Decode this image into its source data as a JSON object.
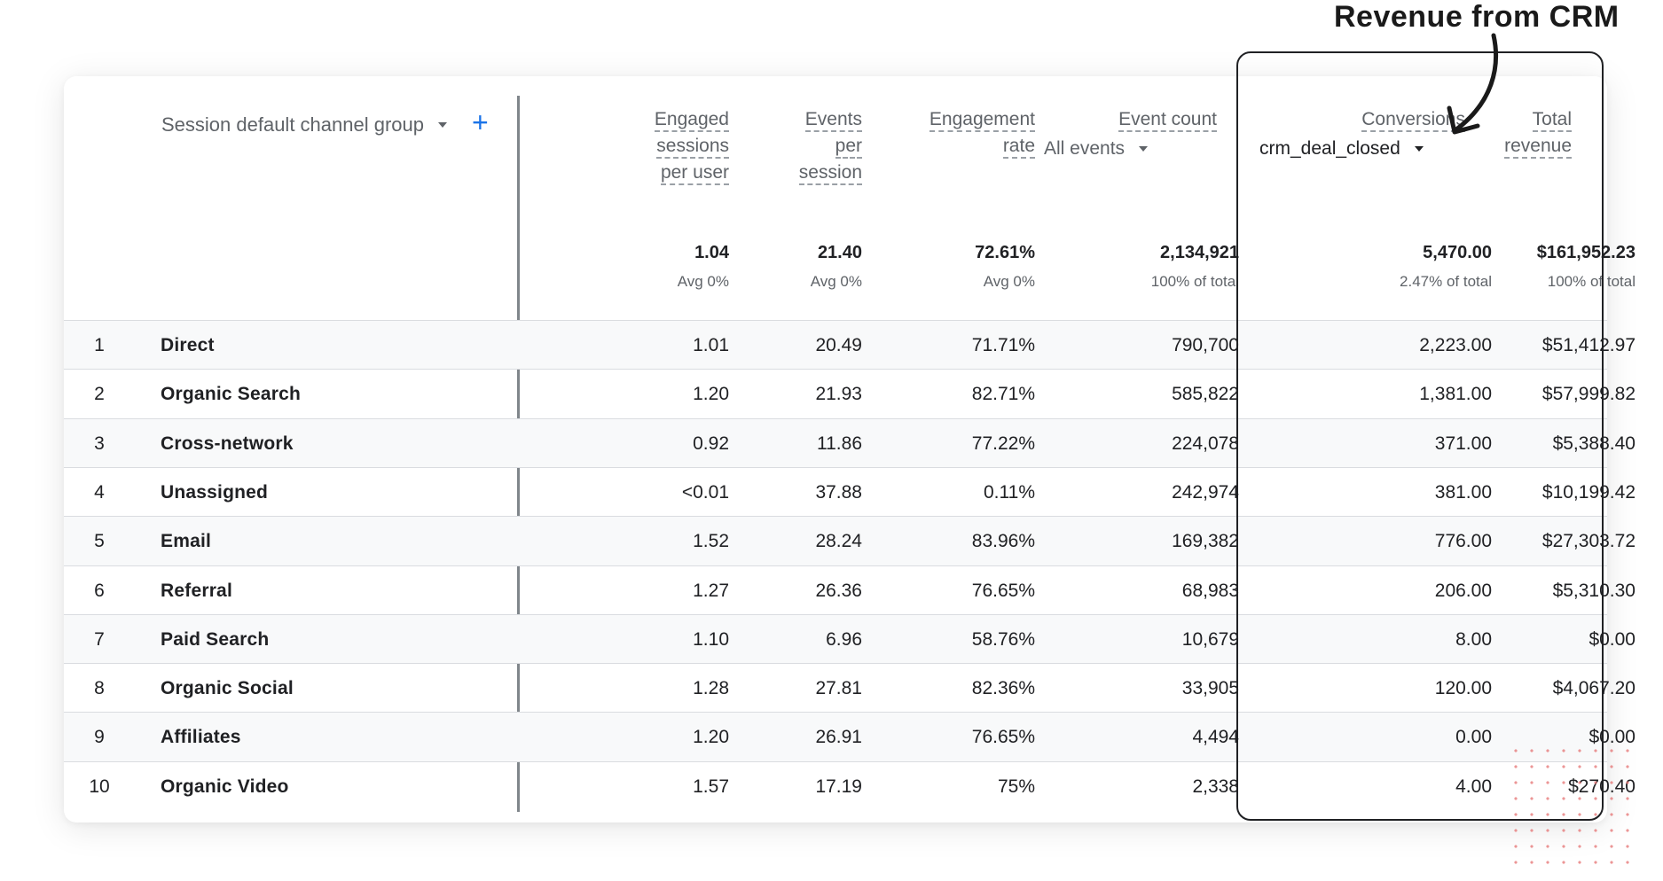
{
  "annotation": {
    "text": "Revenue from CRM"
  },
  "dimension": {
    "label": "Session default channel group",
    "add_symbol": "+"
  },
  "headers": {
    "engaged": [
      "Engaged",
      "sessions",
      "per user"
    ],
    "events": [
      "Events",
      "per",
      "session"
    ],
    "engagement_rate": [
      "Engagement",
      "rate"
    ],
    "event_count": {
      "label": "Event count",
      "selector": "All events"
    },
    "conversions": {
      "label": "Conversions",
      "selector": "crm_deal_closed"
    },
    "revenue": [
      "Total",
      "revenue"
    ]
  },
  "totals": {
    "engaged": {
      "value": "1.04",
      "sub": "Avg 0%"
    },
    "events": {
      "value": "21.40",
      "sub": "Avg 0%"
    },
    "engagement_rate": {
      "value": "72.61%",
      "sub": "Avg 0%"
    },
    "event_count": {
      "value": "2,134,921",
      "sub": "100% of total"
    },
    "conversions": {
      "value": "5,470.00",
      "sub": "2.47% of total"
    },
    "revenue": {
      "value": "$161,952.23",
      "sub": "100% of total"
    }
  },
  "rows": [
    {
      "rank": "1",
      "channel": "Direct",
      "engaged": "1.01",
      "events": "20.49",
      "rate": "71.71%",
      "count": "790,700",
      "conv": "2,223.00",
      "revenue": "$51,412.97"
    },
    {
      "rank": "2",
      "channel": "Organic Search",
      "engaged": "1.20",
      "events": "21.93",
      "rate": "82.71%",
      "count": "585,822",
      "conv": "1,381.00",
      "revenue": "$57,999.82"
    },
    {
      "rank": "3",
      "channel": "Cross-network",
      "engaged": "0.92",
      "events": "11.86",
      "rate": "77.22%",
      "count": "224,078",
      "conv": "371.00",
      "revenue": "$5,388.40"
    },
    {
      "rank": "4",
      "channel": "Unassigned",
      "engaged": "<0.01",
      "events": "37.88",
      "rate": "0.11%",
      "count": "242,974",
      "conv": "381.00",
      "revenue": "$10,199.42"
    },
    {
      "rank": "5",
      "channel": "Email",
      "engaged": "1.52",
      "events": "28.24",
      "rate": "83.96%",
      "count": "169,382",
      "conv": "776.00",
      "revenue": "$27,303.72"
    },
    {
      "rank": "6",
      "channel": "Referral",
      "engaged": "1.27",
      "events": "26.36",
      "rate": "76.65%",
      "count": "68,983",
      "conv": "206.00",
      "revenue": "$5,310.30"
    },
    {
      "rank": "7",
      "channel": "Paid Search",
      "engaged": "1.10",
      "events": "6.96",
      "rate": "58.76%",
      "count": "10,679",
      "conv": "8.00",
      "revenue": "$0.00"
    },
    {
      "rank": "8",
      "channel": "Organic Social",
      "engaged": "1.28",
      "events": "27.81",
      "rate": "82.36%",
      "count": "33,905",
      "conv": "120.00",
      "revenue": "$4,067.20"
    },
    {
      "rank": "9",
      "channel": "Affiliates",
      "engaged": "1.20",
      "events": "26.91",
      "rate": "76.65%",
      "count": "4,494",
      "conv": "0.00",
      "revenue": "$0.00"
    },
    {
      "rank": "10",
      "channel": "Organic Video",
      "engaged": "1.57",
      "events": "17.19",
      "rate": "75%",
      "count": "2,338",
      "conv": "4.00",
      "revenue": "$270.40"
    }
  ]
}
